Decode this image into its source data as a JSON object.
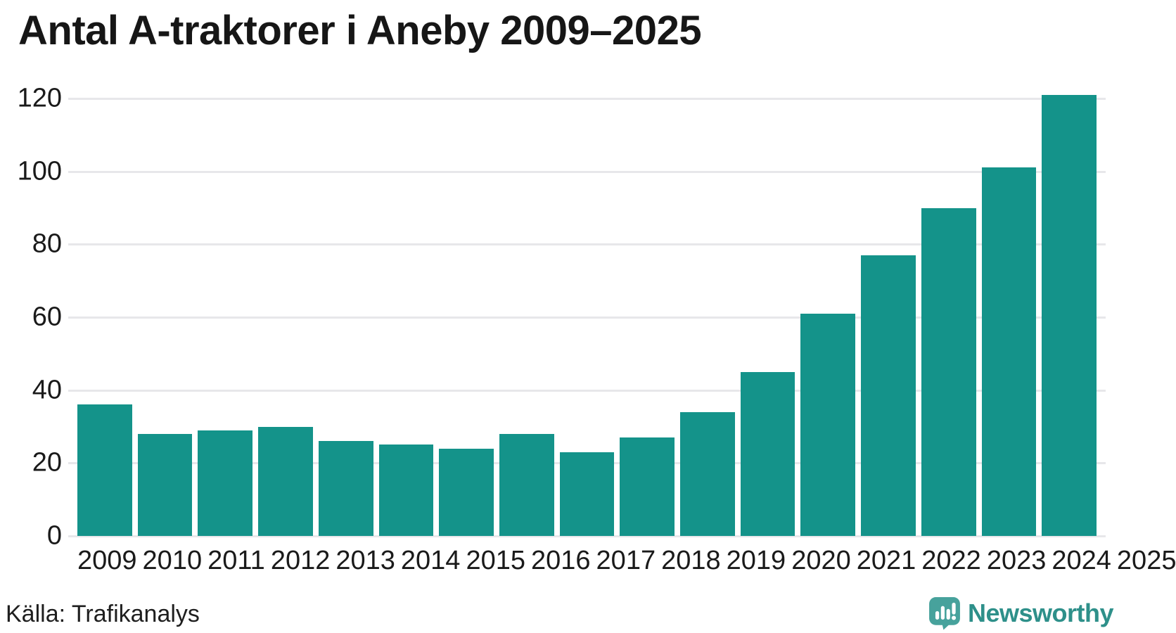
{
  "title": "Antal A-traktorer i Aneby 2009–2025",
  "source": "Källa: Trafikanalys",
  "logo": {
    "text": "Newsworthy",
    "icon": "newsworthy-speech-bubble-chart-icon"
  },
  "colors": {
    "bar": "#14938a",
    "gridline": "#e7e7ea",
    "title_text": "#161616",
    "axis_text": "#1a1a1a",
    "source_text": "#1e1e1e",
    "logo_icon": "#47a29c",
    "logo_text": "#2e908a",
    "background": "#ffffff"
  },
  "chart_data": {
    "type": "bar",
    "title": "Antal A-traktorer i Aneby 2009–2025",
    "categories": [
      "2009",
      "2010",
      "2011",
      "2012",
      "2013",
      "2014",
      "2015",
      "2016",
      "2017",
      "2018",
      "2019",
      "2020",
      "2021",
      "2022",
      "2023",
      "2024",
      "2025"
    ],
    "values": [
      36,
      28,
      29,
      30,
      26,
      25,
      24,
      28,
      23,
      27,
      34,
      45,
      61,
      77,
      90,
      101,
      121
    ],
    "xlabel": "",
    "ylabel": "",
    "ylim": [
      0,
      120
    ],
    "yticks": [
      0,
      20,
      40,
      60,
      80,
      100,
      120
    ],
    "grid": "horizontal",
    "legend": "none",
    "source_label": "Källa: Trafikanalys"
  }
}
